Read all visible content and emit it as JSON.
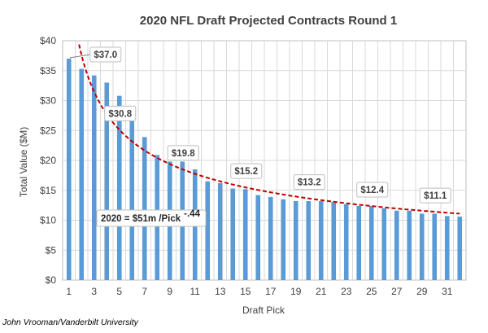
{
  "chart_data": {
    "type": "bar",
    "title": "2020 NFL Draft Projected Contracts Round 1",
    "xlabel": "Draft Pick",
    "ylabel": "Total Value ($M)",
    "ylim": [
      0,
      40
    ],
    "y_ticks": [
      "$0",
      "$5",
      "$10",
      "$15",
      "$20",
      "$25",
      "$30",
      "$35",
      "$40"
    ],
    "x_ticks": [
      "1",
      "3",
      "5",
      "7",
      "9",
      "11",
      "13",
      "15",
      "17",
      "19",
      "21",
      "23",
      "25",
      "27",
      "29",
      "31"
    ],
    "grid": "vertical and horizontal",
    "categories": [
      1,
      2,
      3,
      4,
      5,
      6,
      7,
      8,
      9,
      10,
      11,
      12,
      13,
      14,
      15,
      16,
      17,
      18,
      19,
      20,
      21,
      22,
      23,
      24,
      25,
      26,
      27,
      28,
      29,
      30,
      31,
      32
    ],
    "values": [
      37.0,
      35.3,
      34.2,
      33.0,
      30.8,
      27.0,
      23.9,
      20.9,
      19.8,
      19.8,
      18.5,
      16.5,
      16.2,
      15.3,
      15.2,
      14.2,
      13.9,
      13.5,
      13.2,
      13.2,
      13.2,
      13.1,
      12.7,
      12.4,
      12.4,
      12.0,
      11.6,
      11.6,
      11.1,
      11.1,
      10.7,
      10.6
    ],
    "callouts": [
      {
        "pick": 1,
        "text": "$37.0"
      },
      {
        "pick": 5,
        "text": "$30.8"
      },
      {
        "pick": 10,
        "text": "$19.8"
      },
      {
        "pick": 15,
        "text": "$15.2"
      },
      {
        "pick": 20,
        "text": "$13.2"
      },
      {
        "pick": 25,
        "text": "$12.4"
      },
      {
        "pick": 30,
        "text": "$11.1"
      }
    ],
    "trendline": {
      "label_main": "2020 = $51m /Pick",
      "label_exponent": "-.44",
      "coefficient": 51,
      "exponent": -0.44,
      "style": "dashed"
    },
    "colors": {
      "bar": "#5b9bd5",
      "trendline": "#c00000",
      "grid": "#d9d9d9"
    }
  },
  "credit": "John Vrooman/Vanderbilt University"
}
